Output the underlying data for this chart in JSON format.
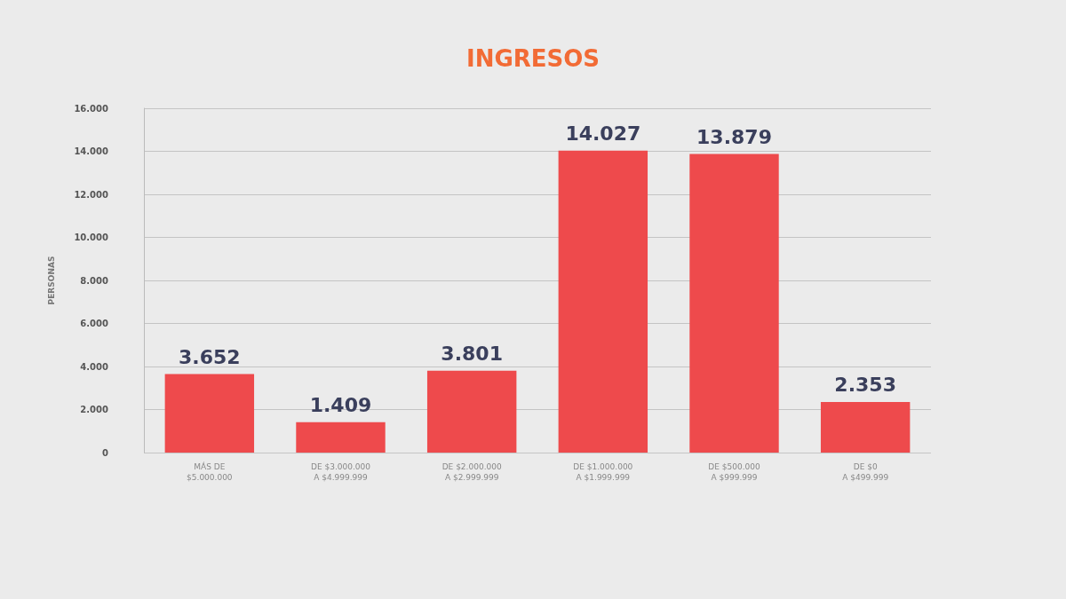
{
  "chart_data": {
    "type": "bar",
    "title": "INGRESOS",
    "ylabel": "PERSONAS",
    "categories": [
      "MÁS DE\n$5.000.000",
      "DE $3.000.000\nA $4.999.999",
      "DE $2.000.000\nA $2.999.999",
      "DE $1.000.000\nA $1.999.999",
      "DE $500.000\nA $999.999",
      "DE $0\nA $499.999"
    ],
    "values": [
      3652,
      1409,
      3801,
      14027,
      13879,
      2353
    ],
    "value_labels": [
      "3.652",
      "1.409",
      "3.801",
      "14.027",
      "13.879",
      "2.353"
    ],
    "color": "#ee4a4c",
    "ylim": [
      0,
      16000
    ],
    "yticks": [
      {
        "value": 0,
        "label": "0"
      },
      {
        "value": 2000,
        "label": "2.000"
      },
      {
        "value": 4000,
        "label": "4.000"
      },
      {
        "value": 6000,
        "label": "6.000"
      },
      {
        "value": 8000,
        "label": "8.000"
      },
      {
        "value": 10000,
        "label": "10.000"
      },
      {
        "value": 12000,
        "label": "12.000"
      },
      {
        "value": 14000,
        "label": "14.000"
      },
      {
        "value": 16000,
        "label": "16.000"
      }
    ],
    "grid": "y"
  }
}
